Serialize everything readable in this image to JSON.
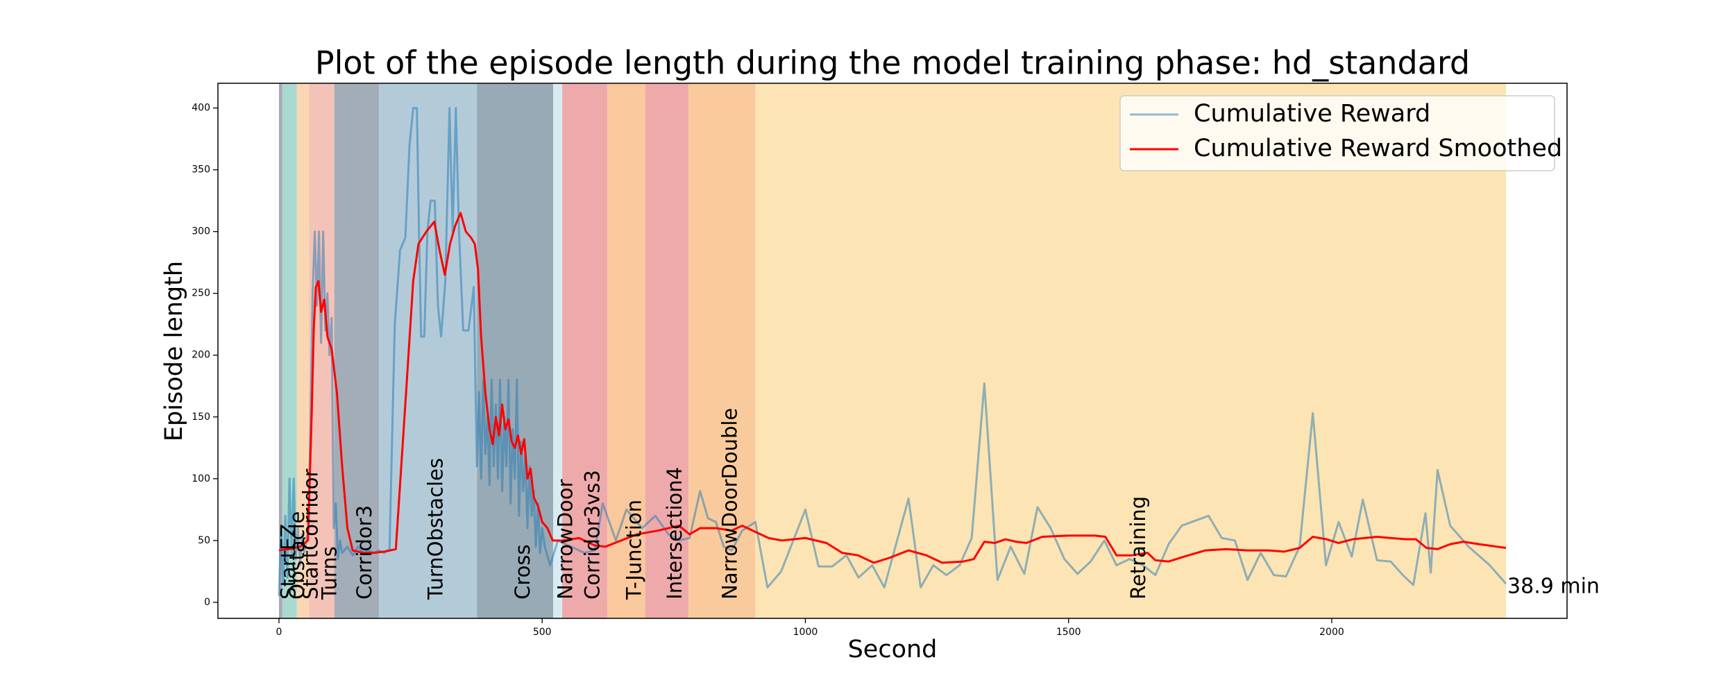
{
  "chart_data": {
    "type": "line",
    "title": "Plot of the episode length during the model training phase: hd_standard",
    "x_label": "Second",
    "y_label": "Episode length",
    "xlim": [
      -116,
      2447
    ],
    "ylim": [
      -13,
      420
    ],
    "xticks": [
      0,
      500,
      1000,
      1500,
      2000
    ],
    "yticks": [
      0,
      50,
      100,
      150,
      200,
      250,
      300,
      350,
      400
    ],
    "grid": false,
    "legend": "upper right",
    "regions": [
      {
        "label": "StartEZ",
        "start": 0,
        "end": 6,
        "color": "#a8a8b8"
      },
      {
        "label": "Obstacle",
        "start": 6,
        "end": 34,
        "color": "#a9d9d0"
      },
      {
        "label": "StartCorridor",
        "start": 34,
        "end": 57,
        "color": "#fbd6b2"
      },
      {
        "label": "Turns",
        "start": 57,
        "end": 105,
        "color": "#f4c3b8"
      },
      {
        "label": "Corridor3",
        "start": 105,
        "end": 190,
        "color": "#a3adb8"
      },
      {
        "label": "TurnObstacles",
        "start": 190,
        "end": 376,
        "color": "#b3cbd9"
      },
      {
        "label": "Cross",
        "start": 376,
        "end": 521,
        "color": "#98aab5"
      },
      {
        "label": "NarrowDoor",
        "start": 521,
        "end": 538,
        "color": "#d8ebf2"
      },
      {
        "label": "Corridor3vs3",
        "start": 538,
        "end": 624,
        "color": "#eeaaaa"
      },
      {
        "label": "T-Junction",
        "start": 624,
        "end": 696,
        "color": "#f9c89c"
      },
      {
        "label": "Intersection4",
        "start": 696,
        "end": 778,
        "color": "#eeaaaa"
      },
      {
        "label": "NarrowDoorDouble",
        "start": 778,
        "end": 905,
        "color": "#f9cb9c"
      },
      {
        "label": "Retraining",
        "start": 905,
        "end": 2331,
        "color": "#fce4b4"
      }
    ],
    "annotation": "38.9 min",
    "series": [
      {
        "name": "Cumulative Reward",
        "color": "#1f77b4",
        "x": [
          0,
          4,
          8,
          12,
          16,
          20,
          24,
          28,
          32,
          36,
          40,
          44,
          48,
          52,
          56,
          60,
          64,
          68,
          72,
          76,
          80,
          84,
          88,
          92,
          96,
          100,
          104,
          108,
          112,
          116,
          120,
          130,
          140,
          150,
          160,
          170,
          180,
          190,
          200,
          210,
          220,
          230,
          240,
          248,
          255,
          262,
          266,
          270,
          276,
          282,
          288,
          296,
          302,
          308,
          316,
          324,
          330,
          336,
          342,
          350,
          360,
          370,
          376,
          380,
          384,
          388,
          392,
          396,
          400,
          404,
          408,
          412,
          416,
          420,
          424,
          428,
          432,
          436,
          440,
          444,
          448,
          452,
          456,
          460,
          464,
          468,
          472,
          476,
          480,
          484,
          488,
          492,
          496,
          500,
          505,
          515,
          530,
          555,
          580,
          600,
          615,
          640,
          660,
          690,
          715,
          740,
          760,
          780,
          800,
          815,
          830,
          845,
          860,
          880,
          905,
          928,
          954,
          1000,
          1025,
          1051,
          1078,
          1101,
          1127,
          1150,
          1196,
          1219,
          1243,
          1268,
          1293,
          1316,
          1340,
          1365,
          1390,
          1416,
          1441,
          1466,
          1492,
          1517,
          1542,
          1568,
          1591,
          1616,
          1641,
          1665,
          1690,
          1715,
          1766,
          1791,
          1816,
          1840,
          1865,
          1890,
          1913,
          1939,
          1964,
          1989,
          2013,
          2038,
          2059,
          2086,
          2112,
          2135,
          2155,
          2178,
          2188,
          2201,
          2225,
          2260,
          2300,
          2331
        ],
        "values": [
          5,
          60,
          15,
          70,
          20,
          100,
          40,
          100,
          35,
          60,
          30,
          55,
          40,
          50,
          60,
          150,
          250,
          300,
          240,
          300,
          210,
          300,
          220,
          250,
          200,
          230,
          60,
          80,
          35,
          50,
          40,
          45,
          38,
          45,
          40,
          42,
          40,
          42,
          40,
          43,
          225,
          285,
          295,
          370,
          400,
          400,
          300,
          215,
          215,
          300,
          325,
          325,
          240,
          215,
          260,
          400,
          300,
          400,
          300,
          220,
          220,
          255,
          110,
          170,
          100,
          180,
          120,
          150,
          95,
          180,
          110,
          160,
          100,
          180,
          90,
          150,
          110,
          180,
          80,
          140,
          100,
          180,
          70,
          130,
          90,
          120,
          60,
          110,
          70,
          90,
          45,
          80,
          40,
          60,
          45,
          30,
          50,
          45,
          40,
          42,
          80,
          50,
          75,
          60,
          70,
          55,
          50,
          52,
          90,
          68,
          65,
          45,
          42,
          58,
          65,
          12,
          25,
          75,
          29,
          29,
          38,
          20,
          30,
          12,
          84,
          12,
          30,
          22,
          30,
          52,
          177,
          18,
          45,
          23,
          77,
          60,
          35,
          23,
          33,
          50,
          30,
          35,
          30,
          22,
          47,
          62,
          70,
          52,
          50,
          18,
          40,
          22,
          21,
          45,
          153,
          30,
          65,
          37,
          83,
          34,
          33,
          22,
          14,
          72,
          24,
          107,
          62,
          45,
          30,
          15
        ]
      },
      {
        "name": "Cumulative Reward Smoothed",
        "color": "#ff0000",
        "x": [
          0,
          20,
          40,
          55,
          62,
          66,
          70,
          75,
          80,
          86,
          92,
          100,
          110,
          120,
          130,
          140,
          160,
          180,
          200,
          222,
          240,
          255,
          265,
          280,
          295,
          305,
          315,
          325,
          335,
          345,
          355,
          365,
          372,
          378,
          384,
          392,
          400,
          406,
          412,
          418,
          424,
          430,
          436,
          442,
          448,
          454,
          460,
          466,
          472,
          478,
          484,
          492,
          500,
          510,
          520,
          540,
          570,
          600,
          620,
          650,
          680,
          720,
          760,
          780,
          800,
          830,
          860,
          880,
          905,
          930,
          955,
          1000,
          1040,
          1070,
          1100,
          1130,
          1160,
          1196,
          1230,
          1260,
          1300,
          1320,
          1340,
          1360,
          1380,
          1400,
          1420,
          1450,
          1500,
          1550,
          1570,
          1591,
          1620,
          1650,
          1665,
          1690,
          1720,
          1760,
          1800,
          1840,
          1880,
          1910,
          1939,
          1964,
          1990,
          2013,
          2040,
          2086,
          2112,
          2140,
          2160,
          2180,
          2201,
          2225,
          2250,
          2280,
          2331
        ],
        "values": [
          42,
          43,
          45,
          50,
          150,
          220,
          255,
          260,
          235,
          245,
          215,
          205,
          170,
          110,
          60,
          42,
          40,
          40,
          41,
          43,
          160,
          260,
          290,
          300,
          308,
          285,
          265,
          290,
          305,
          315,
          300,
          295,
          290,
          270,
          215,
          170,
          140,
          128,
          150,
          135,
          160,
          140,
          148,
          130,
          125,
          135,
          120,
          132,
          100,
          108,
          85,
          78,
          65,
          60,
          50,
          50,
          52,
          46,
          45,
          50,
          55,
          58,
          62,
          55,
          60,
          60,
          58,
          62,
          57,
          52,
          50,
          52,
          48,
          40,
          38,
          32,
          36,
          42,
          38,
          32,
          33,
          35,
          49,
          48,
          51,
          49,
          48,
          53,
          54,
          54,
          53,
          38,
          38,
          40,
          34,
          33,
          37,
          42,
          43,
          42,
          42,
          41,
          44,
          53,
          51,
          48,
          51,
          53,
          52,
          51,
          51,
          44,
          43,
          47,
          49,
          47,
          44
        ]
      }
    ]
  }
}
